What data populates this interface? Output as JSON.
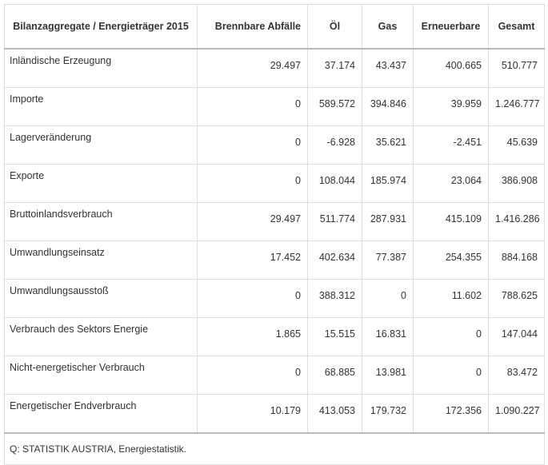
{
  "table": {
    "headers": [
      "Bilanzaggregate / Energieträger 2015",
      "Brennbare Abfälle",
      "Öl",
      "Gas",
      "Erneuerbare",
      "Gesamt"
    ],
    "rows": [
      {
        "label": "Inländische Erzeugung",
        "values": [
          "29.497",
          "37.174",
          "43.437",
          "400.665",
          "510.777"
        ]
      },
      {
        "label": "Importe",
        "values": [
          "0",
          "589.572",
          "394.846",
          "39.959",
          "1.246.777"
        ]
      },
      {
        "label": "Lagerveränderung",
        "values": [
          "0",
          "-6.928",
          "35.621",
          "-2.451",
          "45.639"
        ]
      },
      {
        "label": "Exporte",
        "values": [
          "0",
          "108.044",
          "185.974",
          "23.064",
          "386.908"
        ]
      },
      {
        "label": "Bruttoinlandsverbrauch",
        "values": [
          "29.497",
          "511.774",
          "287.931",
          "415.109",
          "1.416.286"
        ]
      },
      {
        "label": "Umwandlungseinsatz",
        "values": [
          "17.452",
          "402.634",
          "77.387",
          "254.355",
          "884.168"
        ]
      },
      {
        "label": "Umwandlungsausstoß",
        "values": [
          "0",
          "388.312",
          "0",
          "11.602",
          "788.625"
        ]
      },
      {
        "label": "Verbrauch des Sektors Energie",
        "values": [
          "1.865",
          "15.515",
          "16.831",
          "0",
          "147.044"
        ]
      },
      {
        "label": "Nicht-energetischer Verbrauch",
        "values": [
          "0",
          "68.885",
          "13.981",
          "0",
          "83.472"
        ]
      },
      {
        "label": "Energetischer Endverbrauch",
        "values": [
          "10.179",
          "413.053",
          "179.732",
          "172.356",
          "1.090.227"
        ]
      }
    ],
    "footer": "Q: STATISTIK AUSTRIA, Energiestatistik."
  }
}
